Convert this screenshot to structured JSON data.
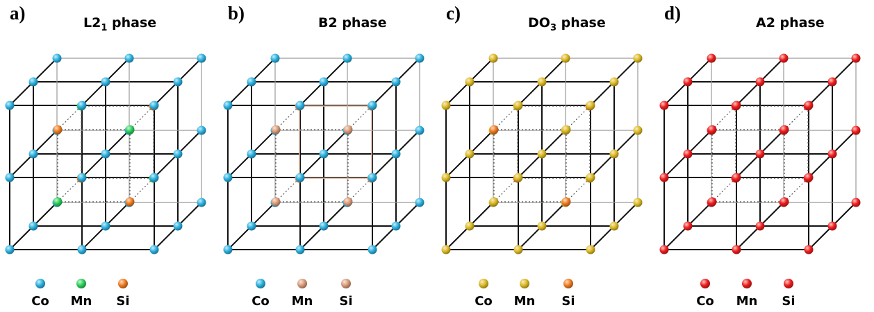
{
  "panels": [
    {
      "letter": "a)",
      "title_main": "L2",
      "title_sub": "1",
      "title_rest": " phase",
      "colors": {
        "corner": "#2ab0df",
        "face": "#2ab0df",
        "inner_a": "#29cf59",
        "inner_b": "#f07a1f"
      },
      "legend": [
        {
          "label": "Co",
          "color": "#2ab0df"
        },
        {
          "label": "Mn",
          "color": "#29cf59"
        },
        {
          "label": "Si",
          "color": "#f07a1f"
        }
      ]
    },
    {
      "letter": "b)",
      "title_main": "B2 phase",
      "title_sub": "",
      "title_rest": "",
      "colors": {
        "corner": "#2ab0df",
        "face": "#2ab0df",
        "inner_a": "#d99a78",
        "inner_b": "#d99a78"
      },
      "legend": [
        {
          "label": "Co",
          "color": "#2ab0df"
        },
        {
          "label": "Mn",
          "color": "#d99a78"
        },
        {
          "label": "Si",
          "color": "#d99a78"
        }
      ]
    },
    {
      "letter": "c)",
      "title_main": "DO",
      "title_sub": "3",
      "title_rest": " phase",
      "colors": {
        "corner": "#dcb822",
        "face": "#dcb822",
        "inner_a": "#dcb822",
        "inner_b": "#f07a1f"
      },
      "legend": [
        {
          "label": "Co",
          "color": "#dcb822"
        },
        {
          "label": "Mn",
          "color": "#dcb822"
        },
        {
          "label": "Si",
          "color": "#f07a1f"
        }
      ]
    },
    {
      "letter": "d)",
      "title_main": "A2 phase",
      "title_sub": "",
      "title_rest": "",
      "colors": {
        "corner": "#ee1c1c",
        "face": "#ee1c1c",
        "inner_a": "#ee1c1c",
        "inner_b": "#ee1c1c"
      },
      "legend": [
        {
          "label": "Co",
          "color": "#ee1c1c"
        },
        {
          "label": "Mn",
          "color": "#ee1c1c"
        },
        {
          "label": "Si",
          "color": "#ee1c1c"
        }
      ]
    }
  ]
}
